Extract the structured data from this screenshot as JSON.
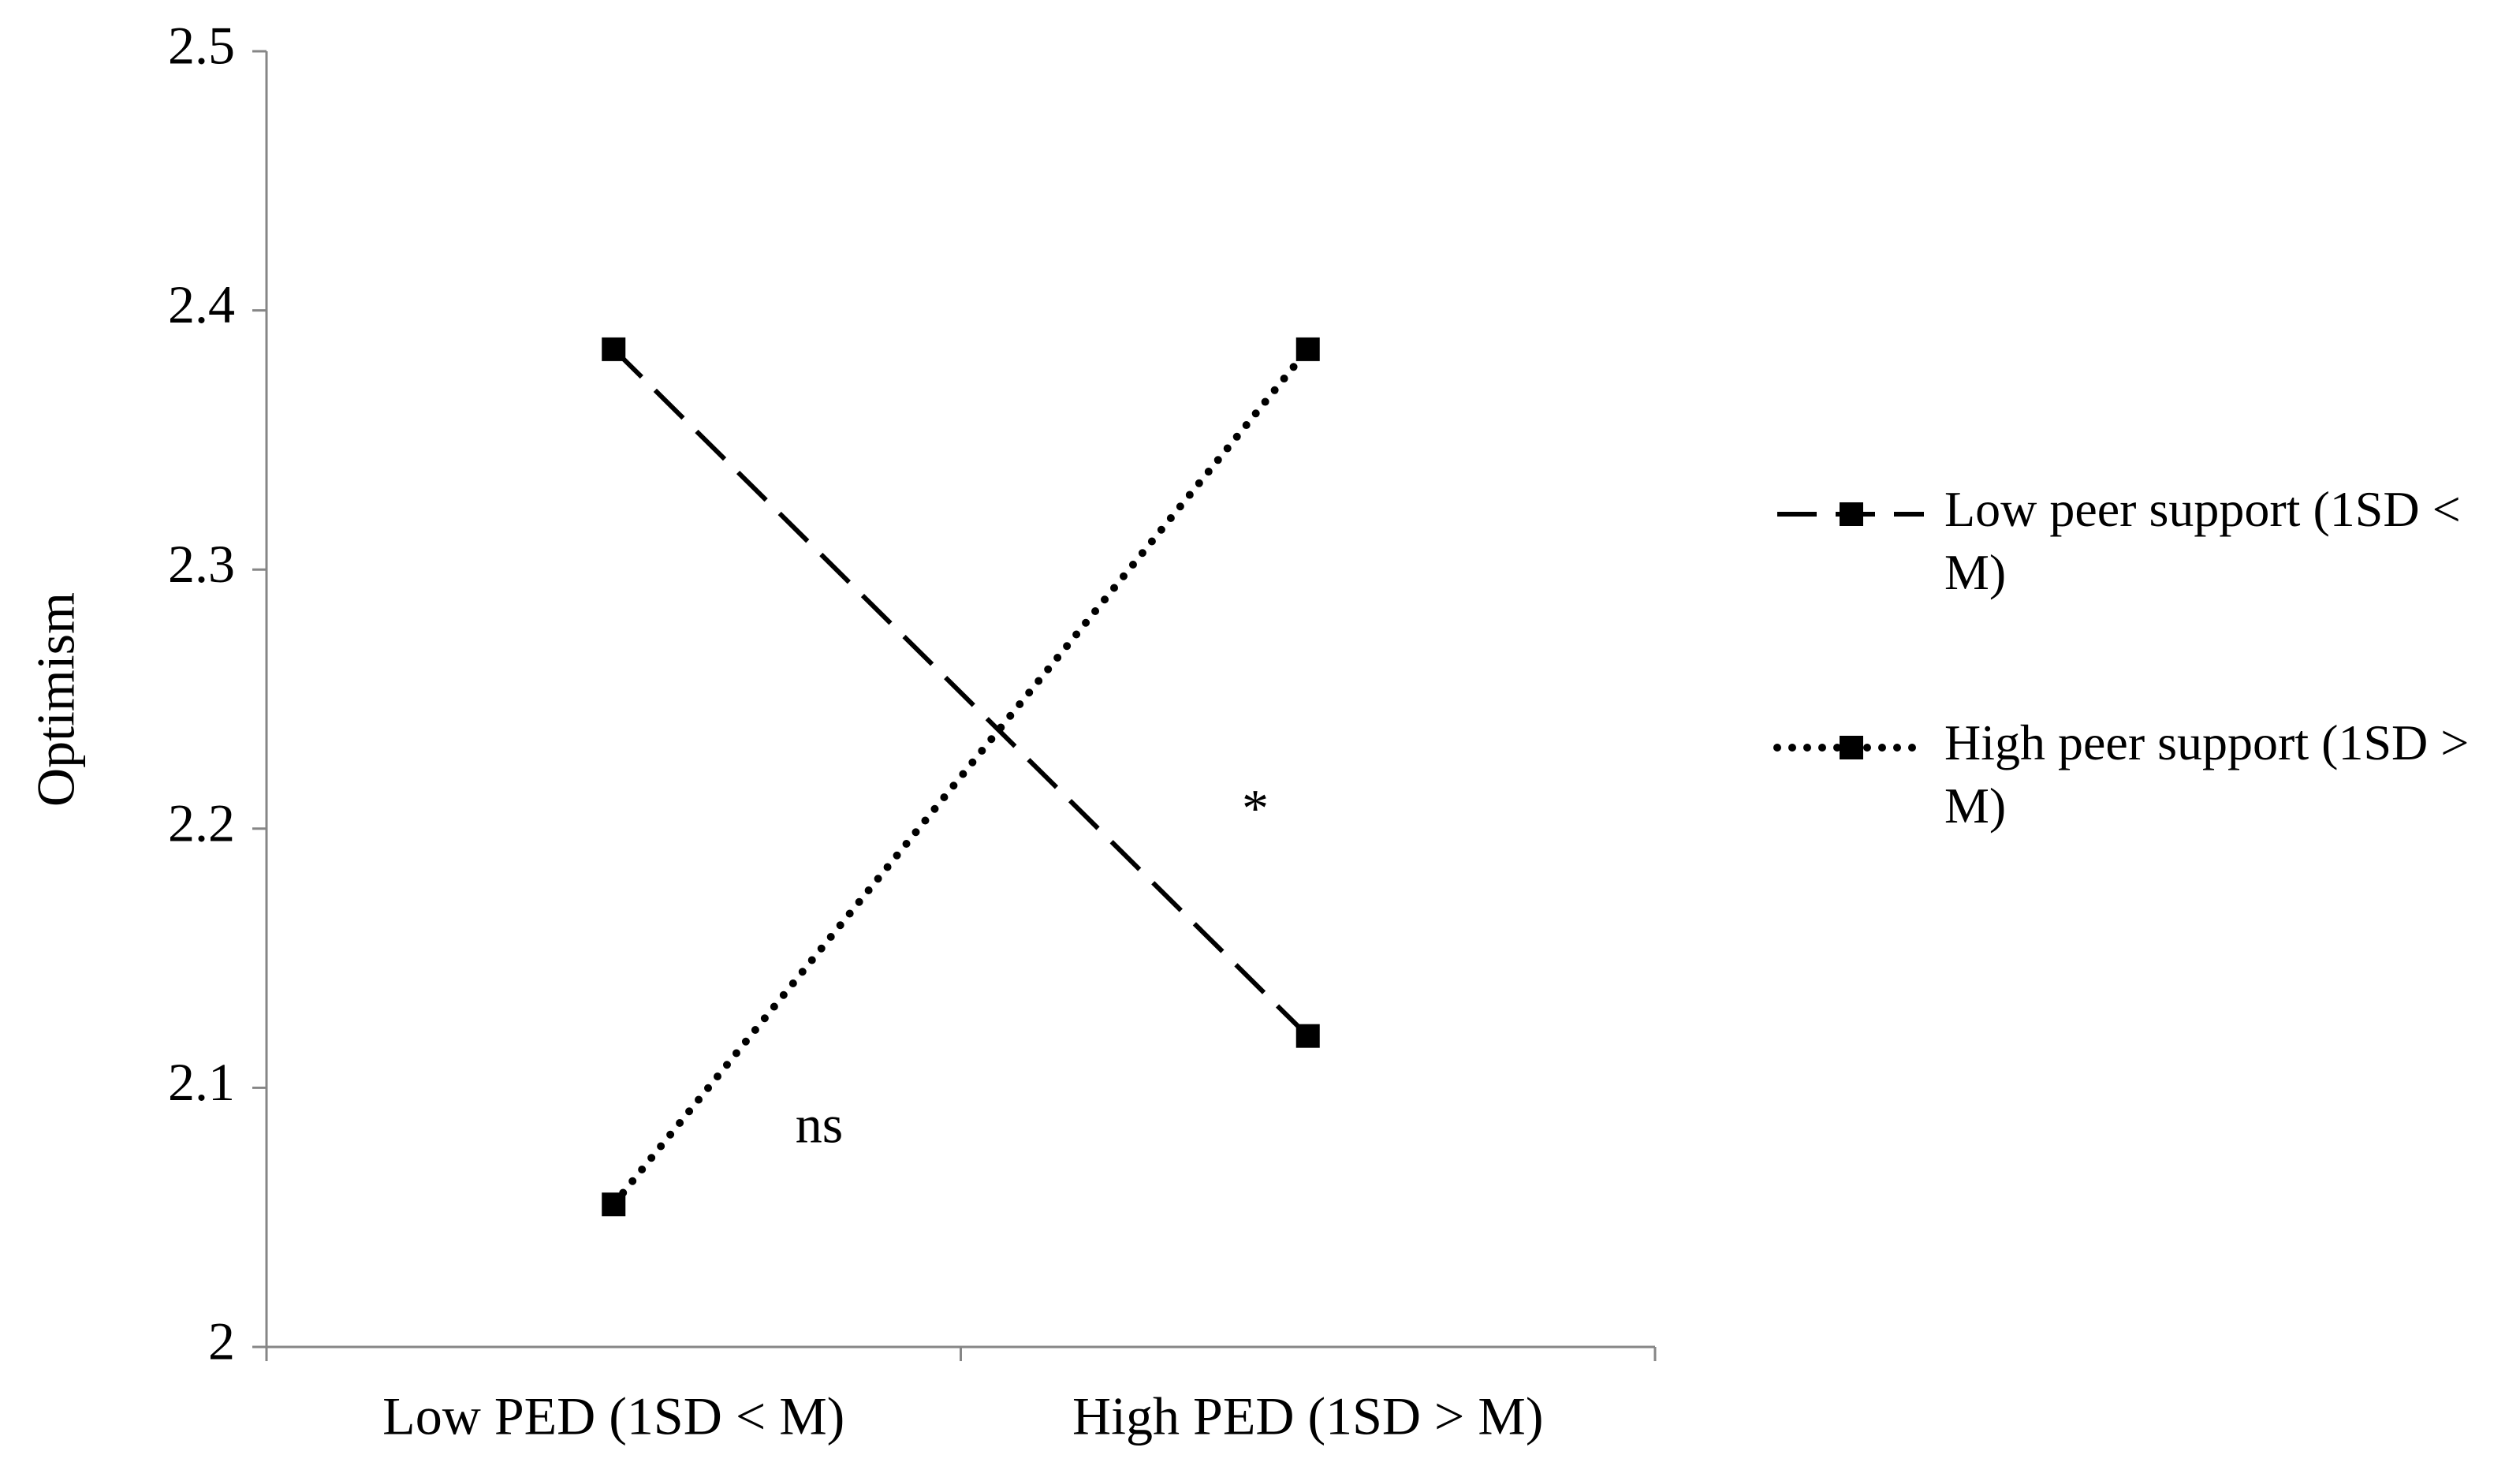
{
  "chart_data": {
    "type": "line",
    "y_label": "Optimism",
    "categories": [
      "Low PED  (1SD < M)",
      "High PED (1SD > M)"
    ],
    "series": [
      {
        "name": "Low peer support (1SD < M)",
        "color": "#000000",
        "line_style": "dashed",
        "values": [
          2.385,
          2.12
        ]
      },
      {
        "name": "High peer support (1SD > M)",
        "color": "#000000",
        "line_style": "dotted",
        "values": [
          2.055,
          2.385
        ]
      }
    ],
    "annotations": [
      "ns",
      "*"
    ],
    "ylim": [
      2,
      2.5
    ],
    "yticks": [
      2,
      2.1,
      2.2,
      2.3,
      2.4,
      2.5
    ],
    "grid": false,
    "legend": "right"
  }
}
